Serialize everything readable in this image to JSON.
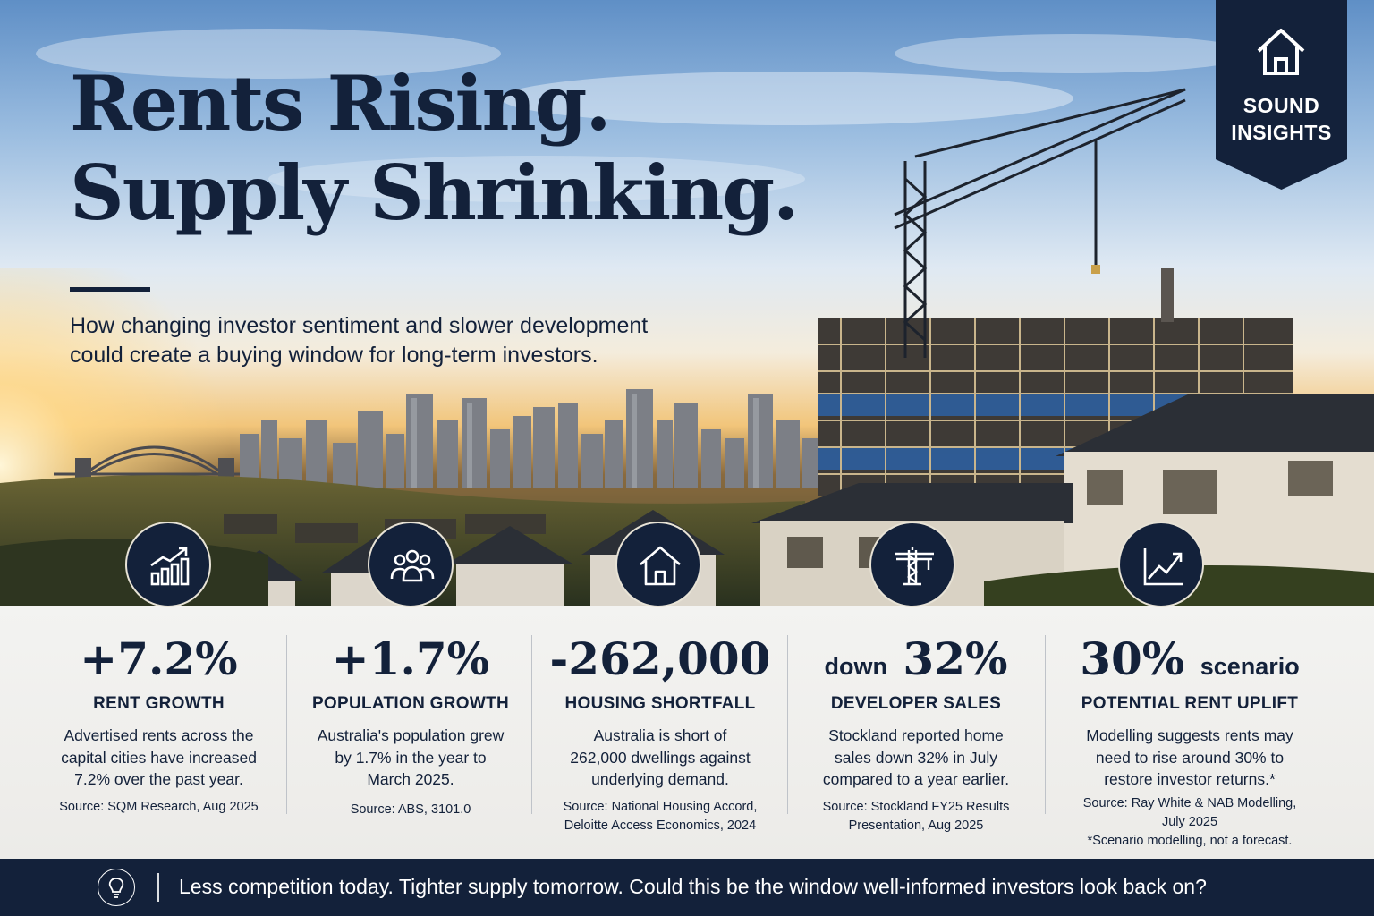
{
  "hero": {
    "title_line1": "Rents Rising.",
    "title_line2": "Supply Shrinking.",
    "subtitle_line1": "How changing investor sentiment and slower development",
    "subtitle_line2": "could create a buying window for long-term investors."
  },
  "badge": {
    "line1": "SOUND",
    "line2": "INSIGHTS",
    "icon": "house-outline-icon"
  },
  "stats": [
    {
      "icon": "bar-chart-rising-icon",
      "value": "+7.2%",
      "value_suffix": "",
      "value_prefix": "",
      "label": "RENT GROWTH",
      "desc": [
        "Advertised rents across the",
        "capital cities have increased",
        "7.2% over the past year."
      ],
      "source": [
        "Source: SQM Research, Aug 2025"
      ],
      "note": ""
    },
    {
      "icon": "people-group-icon",
      "value": "+1.7%",
      "value_suffix": "",
      "value_prefix": "",
      "label": "POPULATION GROWTH",
      "desc": [
        "Australia's population grew",
        "by 1.7% in the year to",
        "March 2025."
      ],
      "source": [
        "Source: ABS, 3101.0"
      ],
      "note": ""
    },
    {
      "icon": "house-icon",
      "value": "-262,000",
      "value_suffix": "",
      "value_prefix": "",
      "label": "HOUSING SHORTFALL",
      "desc": [
        "Australia is short of",
        "262,000 dwellings against",
        "underlying demand."
      ],
      "source": [
        "Source: National Housing Accord,",
        "Deloitte Access Economics, 2024"
      ],
      "note": ""
    },
    {
      "icon": "crane-icon",
      "value": "32%",
      "value_suffix": "",
      "value_prefix": "down",
      "label": "DEVELOPER SALES",
      "desc": [
        "Stockland reported home",
        "sales down 32% in July",
        "compared to a year earlier."
      ],
      "source": [
        "Source: Stockland FY25 Results",
        "Presentation, Aug 2025"
      ],
      "note": ""
    },
    {
      "icon": "trend-line-up-icon",
      "value": "30%",
      "value_suffix": "scenario",
      "value_prefix": "",
      "label": "POTENTIAL RENT UPLIFT",
      "desc": [
        "Modelling suggests rents may",
        "need to rise around 30% to",
        "restore investor returns.*"
      ],
      "source": [
        "Source: Ray White & NAB Modelling,",
        "July 2025"
      ],
      "note": "*Scenario modelling, not a forecast."
    }
  ],
  "footer": {
    "icon": "lightbulb-icon",
    "message": "Less competition today. Tighter supply tomorrow. Could this be the window well-informed investors look back on?"
  },
  "colors": {
    "navy": "#13213a",
    "panel": "#f0efec",
    "sun": "#f2c57a"
  }
}
